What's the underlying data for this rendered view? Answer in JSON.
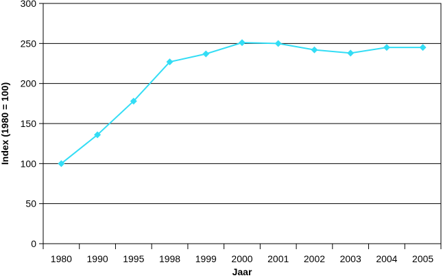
{
  "chart_data": {
    "type": "line",
    "xlabel": "Jaar",
    "ylabel": "Index (1980 = 100)",
    "categories": [
      "1980",
      "1990",
      "1995",
      "1998",
      "1999",
      "2000",
      "2001",
      "2002",
      "2003",
      "2004",
      "2005"
    ],
    "series": [
      {
        "values": [
          100,
          136,
          178,
          227,
          237,
          251,
          250,
          242,
          238,
          245,
          245
        ],
        "color": "#33ddf5",
        "marker": "diamond"
      }
    ],
    "ylim": [
      0,
      300
    ],
    "yticks": [
      0,
      50,
      100,
      150,
      200,
      250,
      300
    ],
    "grid": true
  }
}
